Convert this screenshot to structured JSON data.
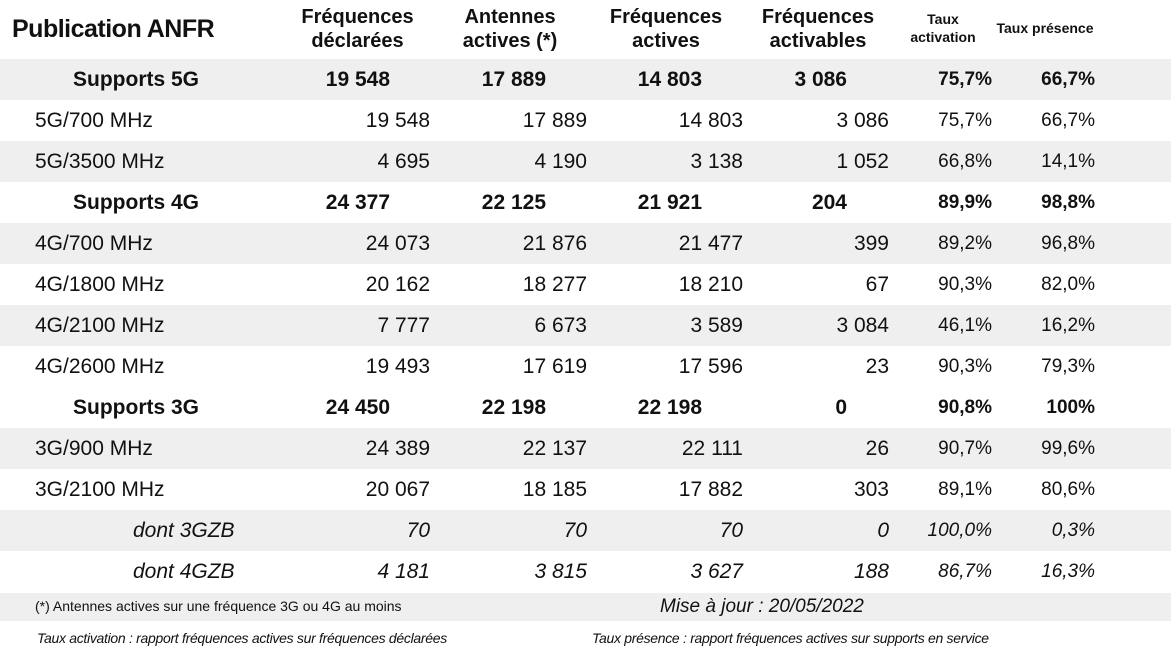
{
  "header": {
    "title": "Publication ANFR",
    "columns": [
      {
        "line1": "Fréquences",
        "line2": "déclarées"
      },
      {
        "line1": "Antennes",
        "line2": "actives (*)"
      },
      {
        "line1": "Fréquences",
        "line2": "actives"
      },
      {
        "line1": "Fréquences",
        "line2": "activables"
      },
      {
        "line1": "Taux",
        "line2": "activation"
      },
      {
        "line1": "Taux présence",
        "line2": ""
      }
    ]
  },
  "rows": [
    {
      "label": "Supports 5G",
      "declarees": "19 548",
      "antennes": "17 889",
      "actives": "14 803",
      "activables": "3 086",
      "taux_activation": "75,7%",
      "taux_presence": "66,7%"
    },
    {
      "label": "5G/700 MHz",
      "declarees": "19 548",
      "antennes": "17 889",
      "actives": "14 803",
      "activables": "3 086",
      "taux_activation": "75,7%",
      "taux_presence": "66,7%"
    },
    {
      "label": "5G/3500 MHz",
      "declarees": "4 695",
      "antennes": "4 190",
      "actives": "3 138",
      "activables": "1 052",
      "taux_activation": "66,8%",
      "taux_presence": "14,1%"
    },
    {
      "label": "Supports 4G",
      "declarees": "24 377",
      "antennes": "22 125",
      "actives": "21 921",
      "activables": "204",
      "taux_activation": "89,9%",
      "taux_presence": "98,8%"
    },
    {
      "label": "4G/700 MHz",
      "declarees": "24 073",
      "antennes": "21 876",
      "actives": "21 477",
      "activables": "399",
      "taux_activation": "89,2%",
      "taux_presence": "96,8%"
    },
    {
      "label": "4G/1800 MHz",
      "declarees": "20 162",
      "antennes": "18 277",
      "actives": "18 210",
      "activables": "67",
      "taux_activation": "90,3%",
      "taux_presence": "82,0%"
    },
    {
      "label": "4G/2100 MHz",
      "declarees": "7 777",
      "antennes": "6 673",
      "actives": "3 589",
      "activables": "3 084",
      "taux_activation": "46,1%",
      "taux_presence": "16,2%"
    },
    {
      "label": "4G/2600 MHz",
      "declarees": "19 493",
      "antennes": "17 619",
      "actives": "17 596",
      "activables": "23",
      "taux_activation": "90,3%",
      "taux_presence": "79,3%"
    },
    {
      "label": "Supports 3G",
      "declarees": "24 450",
      "antennes": "22 198",
      "actives": "22 198",
      "activables": "0",
      "taux_activation": "90,8%",
      "taux_presence": "100%"
    },
    {
      "label": "3G/900 MHz",
      "declarees": "24 389",
      "antennes": "22 137",
      "actives": "22 111",
      "activables": "26",
      "taux_activation": "90,7%",
      "taux_presence": "99,6%"
    },
    {
      "label": "3G/2100 MHz",
      "declarees": "20 067",
      "antennes": "18 185",
      "actives": "17 882",
      "activables": "303",
      "taux_activation": "89,1%",
      "taux_presence": "80,6%"
    },
    {
      "label": "dont 3GZB",
      "declarees": "70",
      "antennes": "70",
      "actives": "70",
      "activables": "0",
      "taux_activation": "100,0%",
      "taux_presence": "0,3%"
    },
    {
      "label": "dont 4GZB",
      "declarees": "4 181",
      "antennes": "3 815",
      "actives": "3 627",
      "activables": "188",
      "taux_activation": "86,7%",
      "taux_presence": "16,3%"
    }
  ],
  "footer": {
    "antennes_note": "(*) Antennes actives sur une fréquence 3G ou 4G au moins",
    "update": "Mise à jour : 20/05/2022",
    "def_activation": "Taux activation : rapport fréquences actives sur fréquences déclarées",
    "def_presence": "Taux présence : rapport fréquences actives sur supports en service"
  }
}
